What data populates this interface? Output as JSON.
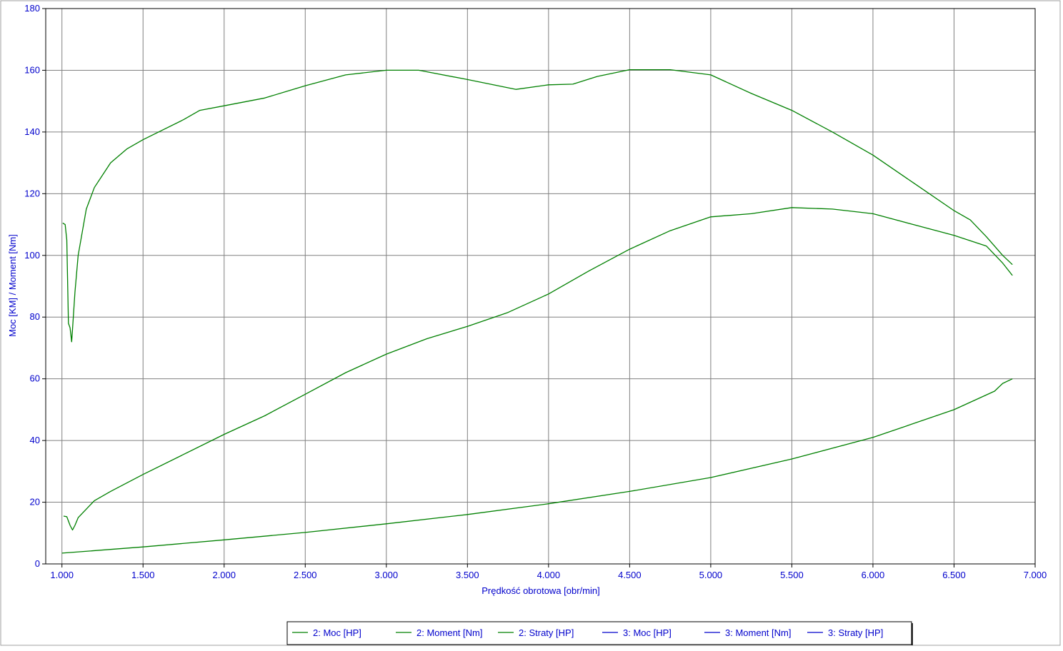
{
  "chart_data": {
    "type": "line",
    "title": "",
    "xlabel": "Prędkość obrotowa [obr/min]",
    "ylabel": "Moc [KM] / Moment [Nm]",
    "xlim": [
      900,
      7000
    ],
    "ylim": [
      0,
      180
    ],
    "grid": true,
    "legend_position": "bottom",
    "x_ticks": [
      1000,
      1500,
      2000,
      2500,
      3000,
      3500,
      4000,
      4500,
      5000,
      5500,
      6000,
      6500,
      7000
    ],
    "x_tick_labels": [
      "1.000",
      "1.500",
      "2.000",
      "2.500",
      "3.000",
      "3.500",
      "4.000",
      "4.500",
      "5.000",
      "5.500",
      "6.000",
      "6.500",
      "7.000"
    ],
    "y_ticks": [
      0,
      20,
      40,
      60,
      80,
      100,
      120,
      140,
      160,
      180
    ],
    "y_tick_labels": [
      "0",
      "20",
      "40",
      "60",
      "80",
      "100",
      "120",
      "140",
      "160",
      "180"
    ],
    "colors": {
      "text": "#0000cc",
      "grid": "#808080",
      "frame": "#000000",
      "series_green": "#008000",
      "series_blue": "#0000cc"
    },
    "series": [
      {
        "name": "2: Moc [HP]",
        "color": "#008000",
        "x": [
          1010,
          1030,
          1050,
          1065,
          1080,
          1100,
          1200,
          1300,
          1500,
          1750,
          2000,
          2250,
          2500,
          2750,
          3000,
          3250,
          3500,
          3750,
          4000,
          4250,
          4500,
          4750,
          5000,
          5250,
          5500,
          5750,
          6000,
          6250,
          6500,
          6700,
          6800,
          6860
        ],
        "y": [
          15.5,
          15.3,
          12.5,
          11.0,
          12.5,
          15.0,
          20.5,
          23.5,
          29.0,
          35.5,
          42.0,
          48.0,
          55.0,
          62.0,
          68.0,
          73.0,
          77.0,
          81.5,
          87.5,
          95.0,
          102.0,
          108.0,
          112.5,
          113.5,
          115.5,
          115.0,
          113.5,
          110.0,
          106.5,
          103.0,
          97.5,
          93.5
        ]
      },
      {
        "name": "2: Moment [Nm]",
        "color": "#008000",
        "x": [
          1005,
          1020,
          1030,
          1040,
          1050,
          1060,
          1065,
          1080,
          1100,
          1150,
          1200,
          1300,
          1400,
          1500,
          1750,
          1850,
          2000,
          2250,
          2500,
          2750,
          3000,
          3200,
          3500,
          3800,
          4000,
          4150,
          4300,
          4500,
          4750,
          5000,
          5250,
          5500,
          5750,
          6000,
          6250,
          6500,
          6600,
          6700,
          6800,
          6860
        ],
        "y": [
          110.5,
          110.0,
          105.0,
          78.0,
          76.5,
          72.0,
          76.0,
          88.0,
          100.0,
          115.0,
          122.0,
          130.0,
          134.5,
          137.5,
          144.0,
          147.0,
          148.5,
          151.0,
          155.0,
          158.5,
          160.0,
          160.0,
          157.0,
          153.8,
          155.3,
          155.5,
          158.0,
          160.2,
          160.2,
          158.5,
          152.5,
          147.0,
          140.0,
          132.5,
          123.5,
          114.5,
          111.5,
          106.0,
          100.0,
          97.0
        ]
      },
      {
        "name": "2: Straty [HP]",
        "color": "#008000",
        "x": [
          1000,
          1500,
          2000,
          2500,
          3000,
          3500,
          4000,
          4500,
          5000,
          5500,
          6000,
          6500,
          6750,
          6800,
          6860
        ],
        "y": [
          3.5,
          5.5,
          7.8,
          10.2,
          13.0,
          16.0,
          19.5,
          23.5,
          28.0,
          34.0,
          41.0,
          50.0,
          56.0,
          58.5,
          60.0
        ]
      },
      {
        "name": "3: Moc [HP]",
        "color": "#0000cc",
        "x": [],
        "y": []
      },
      {
        "name": "3: Moment [Nm]",
        "color": "#0000cc",
        "x": [],
        "y": []
      },
      {
        "name": "3: Straty [HP]",
        "color": "#0000cc",
        "x": [],
        "y": []
      }
    ]
  }
}
